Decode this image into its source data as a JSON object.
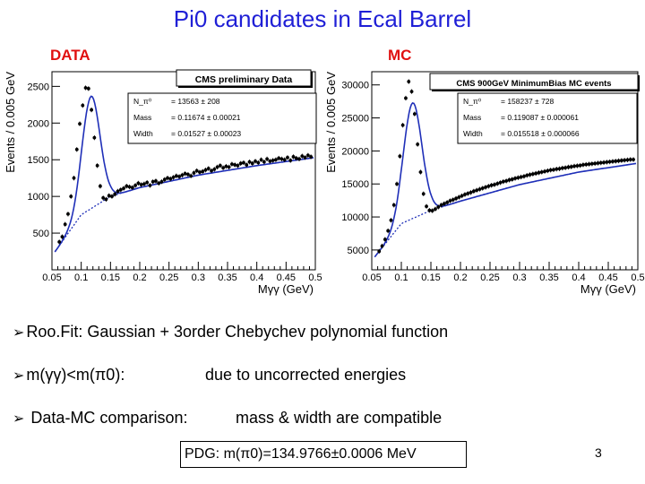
{
  "slide": {
    "title": "Pi0 candidates in Ecal Barrel",
    "data_label": "DATA",
    "mc_label": "MC",
    "bullets": [
      {
        "text": "Roo.Fit: Gaussian + 3order Chebychev polynomial function"
      },
      {
        "left": "m(γγ)<m(π0):",
        "right": "due to uncorrected energies"
      },
      {
        "left": "Data-MC comparison:",
        "right": "mass & width are compatible"
      }
    ],
    "pdg_box": "PDG: m(π0)=134.9766±0.0006 MeV",
    "page_number": "3",
    "colors": {
      "title": "#1f1fd6",
      "panel_label": "#e01010",
      "fit": "#1f2fb8",
      "points": "#000000"
    }
  },
  "chart_data": [
    {
      "type": "scatter",
      "panel": "DATA",
      "title": "CMS preliminary Data",
      "xlabel": "Mγγ (GeV)",
      "ylabel": "Events / 0.005 GeV",
      "xlim": [
        0.05,
        0.5
      ],
      "ylim": [
        0,
        2700
      ],
      "xticks": [
        "0.05",
        "0.1",
        "0.15",
        "0.2",
        "0.25",
        "0.3",
        "0.35",
        "0.4",
        "0.45",
        "0.5"
      ],
      "yticks": [
        "500",
        "1000",
        "1500",
        "2000",
        "2500"
      ],
      "ytick_values": [
        500,
        1000,
        1500,
        2000,
        2500
      ],
      "stats": [
        {
          "label": "N_π⁰",
          "value": "13563 ± 208"
        },
        {
          "label": "Mass",
          "value": "0.11674 ± 0.00021"
        },
        {
          "label": "Width",
          "value": "0.01527 ± 0.00023"
        }
      ],
      "fit": {
        "peak_mean": 0.11674,
        "peak_sigma": 0.01527,
        "peak_height": 1530,
        "bkg_x": [
          0.06,
          0.1,
          0.15,
          0.2,
          0.3,
          0.4,
          0.49
        ],
        "bkg_y": [
          300,
          750,
          1000,
          1120,
          1290,
          1420,
          1520
        ]
      },
      "x": [
        0.0625,
        0.0675,
        0.0725,
        0.0775,
        0.0825,
        0.0875,
        0.0925,
        0.0975,
        0.1025,
        0.1075,
        0.1125,
        0.1175,
        0.1225,
        0.1275,
        0.1325,
        0.1375,
        0.1425,
        0.1475,
        0.1525,
        0.1575,
        0.1625,
        0.1675,
        0.1725,
        0.1775,
        0.1825,
        0.1875,
        0.1925,
        0.1975,
        0.2025,
        0.2075,
        0.2125,
        0.2175,
        0.2225,
        0.2275,
        0.2325,
        0.2375,
        0.2425,
        0.2475,
        0.2525,
        0.2575,
        0.2625,
        0.2675,
        0.2725,
        0.2775,
        0.2825,
        0.2875,
        0.2925,
        0.2975,
        0.3025,
        0.3075,
        0.3125,
        0.3175,
        0.3225,
        0.3275,
        0.3325,
        0.3375,
        0.3425,
        0.3475,
        0.3525,
        0.3575,
        0.3625,
        0.3675,
        0.3725,
        0.3775,
        0.3825,
        0.3875,
        0.3925,
        0.3975,
        0.4025,
        0.4075,
        0.4125,
        0.4175,
        0.4225,
        0.4275,
        0.4325,
        0.4375,
        0.4425,
        0.4475,
        0.4525,
        0.4575,
        0.4625,
        0.4675,
        0.4725,
        0.4775,
        0.4825,
        0.4875,
        0.4925
      ],
      "y": [
        380,
        450,
        620,
        760,
        1000,
        1250,
        1640,
        1990,
        2240,
        2480,
        2470,
        2180,
        1800,
        1420,
        1140,
        980,
        960,
        1010,
        1000,
        1030,
        1070,
        1090,
        1110,
        1140,
        1130,
        1120,
        1150,
        1180,
        1160,
        1170,
        1190,
        1150,
        1200,
        1210,
        1180,
        1200,
        1230,
        1250,
        1240,
        1260,
        1280,
        1270,
        1290,
        1310,
        1300,
        1280,
        1320,
        1350,
        1330,
        1340,
        1360,
        1380,
        1350,
        1370,
        1400,
        1420,
        1390,
        1410,
        1400,
        1440,
        1430,
        1420,
        1450,
        1460,
        1430,
        1470,
        1450,
        1480,
        1460,
        1500,
        1470,
        1510,
        1480,
        1490,
        1500,
        1520,
        1510,
        1500,
        1530,
        1490,
        1540,
        1520,
        1510,
        1550,
        1530,
        1560,
        1540
      ]
    },
    {
      "type": "scatter",
      "panel": "MC",
      "title": "CMS 900GeV MinimumBias MC events",
      "xlabel": "Mγγ (GeV)",
      "ylabel": "Events / 0.005 GeV",
      "xlim": [
        0.05,
        0.5
      ],
      "ylim": [
        2000,
        32000
      ],
      "xticks": [
        "0.05",
        "0.1",
        "0.15",
        "0.2",
        "0.25",
        "0.3",
        "0.35",
        "0.4",
        "0.45",
        "0.5"
      ],
      "yticks": [
        "5000",
        "10000",
        "15000",
        "20000",
        "25000",
        "30000"
      ],
      "ytick_values": [
        5000,
        10000,
        15000,
        20000,
        25000,
        30000
      ],
      "stats": [
        {
          "label": "N_π⁰",
          "value": "158237 ± 728"
        },
        {
          "label": "Mass",
          "value": "0.119087 ± 0.000061"
        },
        {
          "label": "Width",
          "value": "0.015518 ± 0.000066"
        }
      ],
      "fit": {
        "peak_mean": 0.119087,
        "peak_sigma": 0.015518,
        "peak_height": 17500,
        "bkg_x": [
          0.06,
          0.1,
          0.15,
          0.2,
          0.3,
          0.4,
          0.49
        ],
        "bkg_y": [
          4500,
          9000,
          11000,
          12400,
          14900,
          16800,
          18000
        ]
      },
      "x": [
        0.0625,
        0.0675,
        0.0725,
        0.0775,
        0.0825,
        0.0875,
        0.0925,
        0.0975,
        0.1025,
        0.1075,
        0.1125,
        0.1175,
        0.1225,
        0.1275,
        0.1325,
        0.1375,
        0.1425,
        0.1475,
        0.1525,
        0.1575,
        0.1625,
        0.1675,
        0.1725,
        0.1775,
        0.1825,
        0.1875,
        0.1925,
        0.1975,
        0.2025,
        0.2075,
        0.2125,
        0.2175,
        0.2225,
        0.2275,
        0.2325,
        0.2375,
        0.2425,
        0.2475,
        0.2525,
        0.2575,
        0.2625,
        0.2675,
        0.2725,
        0.2775,
        0.2825,
        0.2875,
        0.2925,
        0.2975,
        0.3025,
        0.3075,
        0.3125,
        0.3175,
        0.3225,
        0.3275,
        0.3325,
        0.3375,
        0.3425,
        0.3475,
        0.3525,
        0.3575,
        0.3625,
        0.3675,
        0.3725,
        0.3775,
        0.3825,
        0.3875,
        0.3925,
        0.3975,
        0.4025,
        0.4075,
        0.4125,
        0.4175,
        0.4225,
        0.4275,
        0.4325,
        0.4375,
        0.4425,
        0.4475,
        0.4525,
        0.4575,
        0.4625,
        0.4675,
        0.4725,
        0.4775,
        0.4825,
        0.4875,
        0.4925
      ],
      "y": [
        4800,
        5600,
        6600,
        7900,
        9500,
        11800,
        15000,
        19200,
        23900,
        28000,
        30500,
        29000,
        25600,
        21000,
        16800,
        13500,
        11600,
        11000,
        10950,
        11200,
        11500,
        11800,
        12000,
        12200,
        12450,
        12600,
        12800,
        13000,
        13200,
        13400,
        13550,
        13700,
        13900,
        14050,
        14200,
        14350,
        14500,
        14650,
        14800,
        14900,
        15050,
        15200,
        15350,
        15450,
        15600,
        15700,
        15850,
        15950,
        16050,
        16150,
        16300,
        16400,
        16500,
        16600,
        16700,
        16800,
        16900,
        17000,
        17100,
        17150,
        17250,
        17300,
        17400,
        17450,
        17550,
        17600,
        17700,
        17750,
        17800,
        17900,
        17950,
        18000,
        18050,
        18100,
        18150,
        18200,
        18250,
        18300,
        18350,
        18400,
        18450,
        18500,
        18550,
        18600,
        18650,
        18700,
        18700
      ]
    }
  ]
}
